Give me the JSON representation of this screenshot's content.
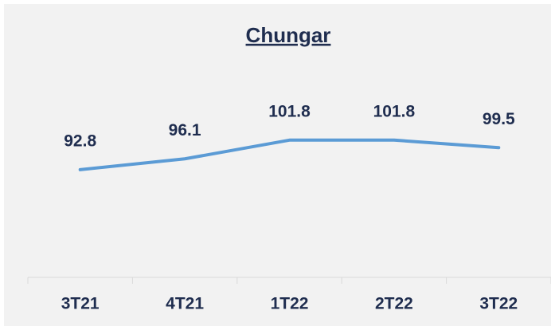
{
  "chart_data": {
    "type": "line",
    "title": "Chungar",
    "categories": [
      "3T21",
      "4T21",
      "1T22",
      "2T22",
      "3T22"
    ],
    "values": [
      92.8,
      96.1,
      101.8,
      101.8,
      99.5
    ],
    "color": "#5b9bd5",
    "ylim": [
      60,
      110
    ]
  }
}
